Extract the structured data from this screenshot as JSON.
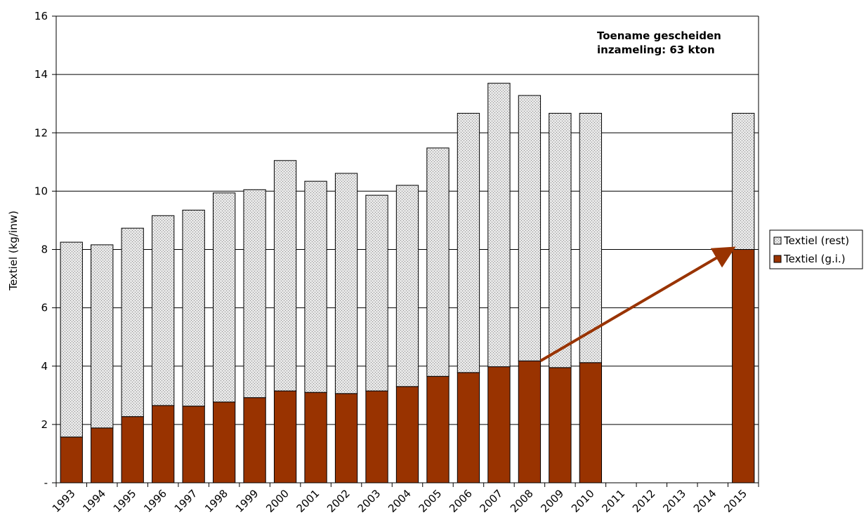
{
  "chart_data": {
    "type": "bar",
    "stacked": true,
    "title": "",
    "xlabel": "",
    "ylabel": "Textiel (kg/inw)",
    "ylim": [
      0,
      16
    ],
    "yticks": [
      0,
      2,
      4,
      6,
      8,
      10,
      12,
      14,
      16
    ],
    "ytick_labels": [
      "-",
      "2",
      "4",
      "6",
      "8",
      "10",
      "12",
      "14",
      "16"
    ],
    "grid": "horizontal",
    "legend_position": "right",
    "categories": [
      "1993",
      "1994",
      "1995",
      "1996",
      "1997",
      "1998",
      "1999",
      "2000",
      "2001",
      "2002",
      "2003",
      "2004",
      "2005",
      "2006",
      "2007",
      "2008",
      "2009",
      "2010",
      "2011",
      "2012",
      "2013",
      "2014",
      "2015"
    ],
    "series": [
      {
        "name": "Textiel (g.i.)",
        "color": "#993300",
        "values": [
          1.57,
          1.88,
          2.27,
          2.65,
          2.63,
          2.77,
          2.92,
          3.15,
          3.1,
          3.06,
          3.15,
          3.3,
          3.65,
          3.78,
          3.98,
          4.18,
          3.95,
          4.12,
          null,
          null,
          null,
          null,
          8.0
        ]
      },
      {
        "name": "Textiel (rest)",
        "color": "#c0c0c0",
        "pattern": "dotted",
        "values": [
          6.68,
          6.28,
          6.46,
          6.51,
          6.72,
          7.17,
          7.13,
          7.9,
          7.24,
          7.55,
          6.71,
          6.9,
          7.83,
          8.89,
          9.72,
          9.1,
          8.72,
          8.55,
          null,
          null,
          null,
          null,
          4.67
        ]
      }
    ],
    "annotations": {
      "text_lines": [
        "Toename gescheiden",
        "inzameling: 63 kton"
      ],
      "arrow": {
        "from_category": "2008",
        "from_value": 4.18,
        "to_category": "2015",
        "to_value": 8.0,
        "color": "#993300"
      }
    }
  }
}
